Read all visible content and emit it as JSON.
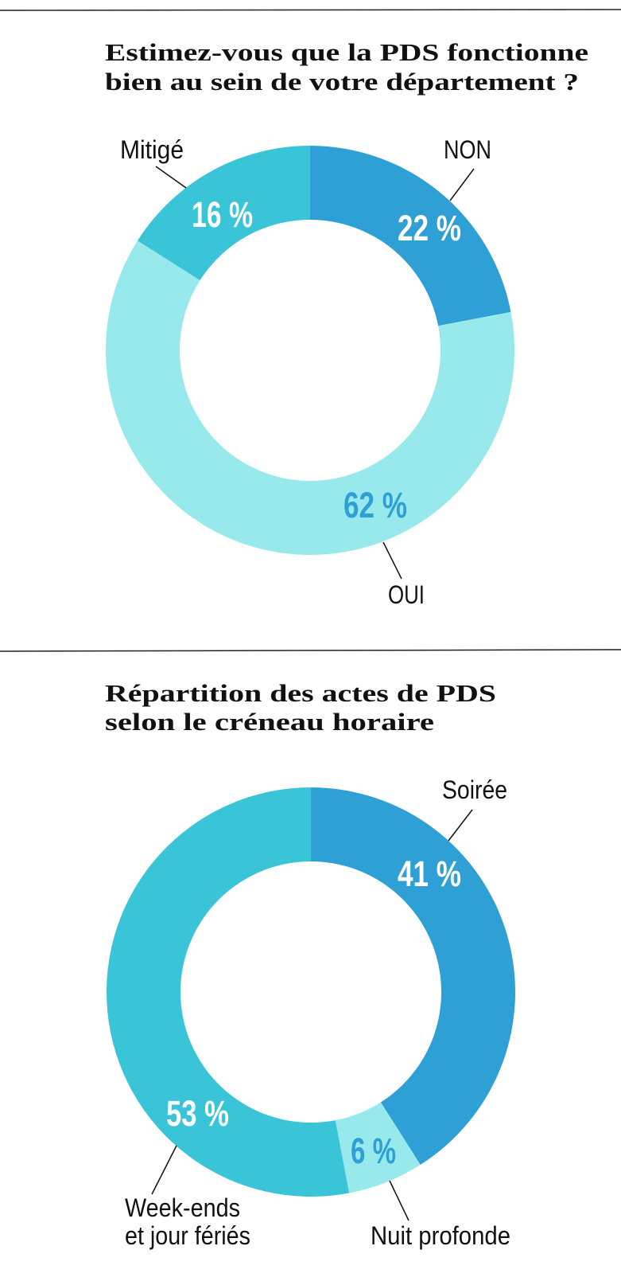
{
  "colors": {
    "dark_blue": "#2ea0d5",
    "cyan": "#3ac4d7",
    "light_cyan": "#97e9ec",
    "white": "#ffffff"
  },
  "chart_data": [
    {
      "type": "pie",
      "donut": true,
      "title_lines": [
        "Estimez-vous que la PDS fonctionne",
        "bien au sein de votre département ?"
      ],
      "slices": [
        {
          "label": "NON",
          "value": 22,
          "value_label": "22 %",
          "color": "#2ea0d5",
          "value_color": "#ffffff"
        },
        {
          "label": "OUI",
          "value": 62,
          "value_label": "62 %",
          "color": "#97e9ec",
          "value_color": "#2ea0d5"
        },
        {
          "label": "Mitigé",
          "value": 16,
          "value_label": "16 %",
          "color": "#3ac4d7",
          "value_color": "#ffffff"
        }
      ]
    },
    {
      "type": "pie",
      "donut": true,
      "title_lines": [
        "Répartition des actes de PDS",
        "selon le créneau horaire"
      ],
      "slices": [
        {
          "label": "Soirée",
          "value": 41,
          "value_label": "41 %",
          "color": "#2ea0d5",
          "value_color": "#ffffff"
        },
        {
          "label": "Nuit profonde",
          "value": 6,
          "value_label": "6 %",
          "color": "#97e9ec",
          "value_color": "#2ea0d5"
        },
        {
          "label_lines": [
            "Week-ends",
            "et jour fériés"
          ],
          "value": 53,
          "value_label": "53 %",
          "color": "#3ac4d7",
          "value_color": "#ffffff"
        }
      ]
    }
  ]
}
